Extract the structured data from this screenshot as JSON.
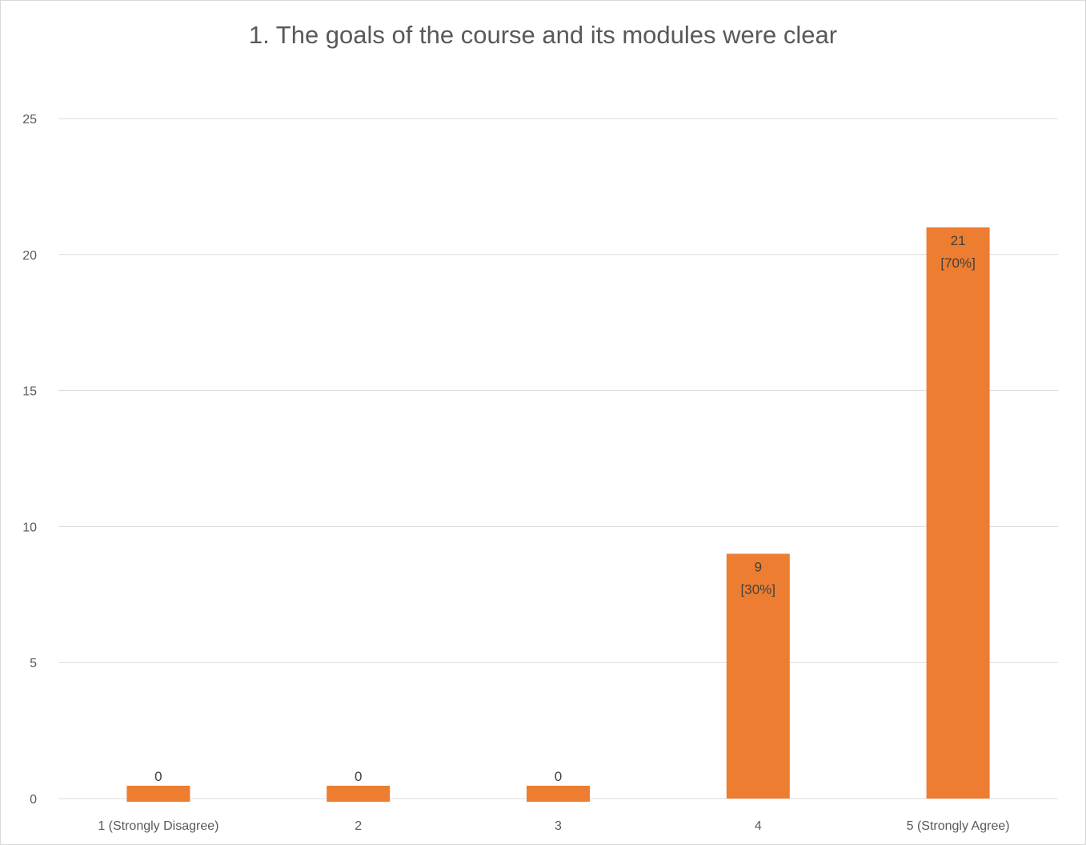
{
  "chart_data": {
    "type": "bar",
    "title": "1. The goals of the course and its modules were clear",
    "xlabel": "",
    "ylabel": "",
    "categories": [
      "1 (Strongly Disagree)",
      "2",
      "3",
      "4",
      "5 (Strongly Agree)"
    ],
    "values": [
      0,
      0,
      0,
      9,
      21
    ],
    "data_labels": [
      [
        "0"
      ],
      [
        "0"
      ],
      [
        "0"
      ],
      [
        "9",
        "[30%]"
      ],
      [
        "21",
        "[70%]"
      ]
    ],
    "ylim": [
      0,
      25
    ],
    "yticks": [
      0,
      5,
      10,
      15,
      20,
      25
    ],
    "grid": true,
    "legend": "none",
    "colors": {
      "bar": "#ED7D31",
      "grid": "#d9d9d9",
      "text": "#595959"
    }
  }
}
